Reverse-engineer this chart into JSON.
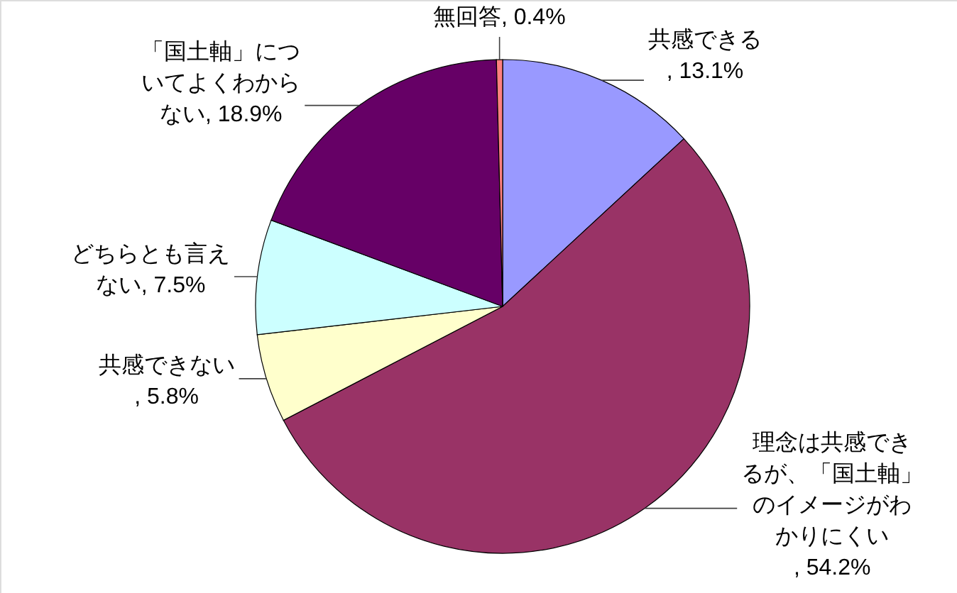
{
  "chart_data": {
    "type": "pie",
    "categories": [
      "共感できる",
      "理念は共感できるが、「国土軸」のイメージがわかりにくい",
      "共感できない",
      "どちらとも言えない",
      "「国土軸」についてよくわからない",
      "無回答"
    ],
    "values": [
      13.1,
      54.2,
      5.8,
      7.5,
      18.9,
      0.4
    ],
    "colors": [
      "#9999ff",
      "#993366",
      "#ffffcc",
      "#ccffff",
      "#660066",
      "#ff8080"
    ],
    "value_labels": [
      ", 13.1%",
      ", 54.2%",
      ", 5.8%",
      ", 7.5%",
      ", 18.9%",
      ", 0.4%"
    ]
  }
}
